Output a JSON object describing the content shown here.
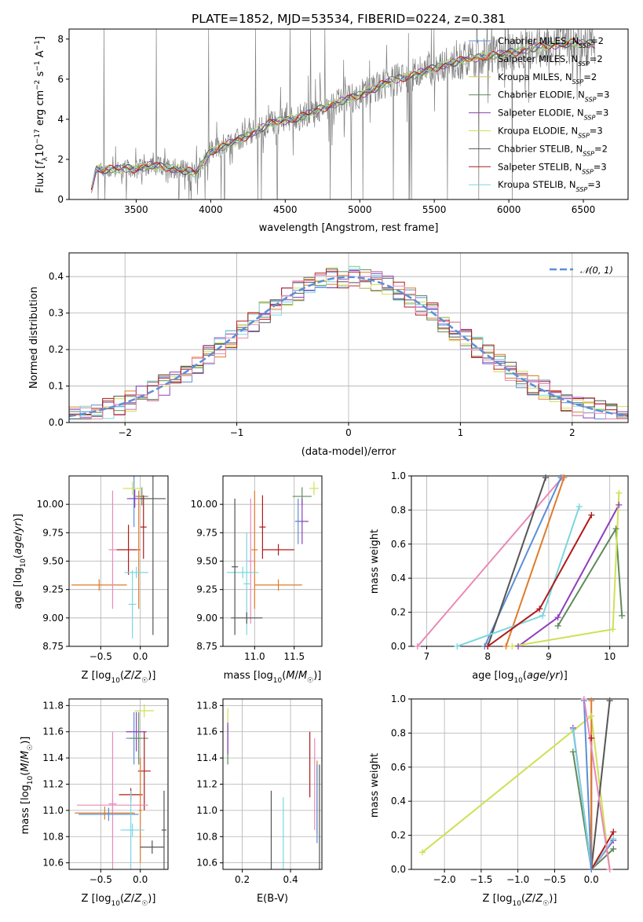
{
  "figure_title": "PLATE=1852, MJD=53534, FIBERID=0224, z=0.381",
  "colors": {
    "c0": "#5a8fd6",
    "c1": "#e07b2a",
    "c2": "#5f8a5b",
    "c3": "#8e3fbd",
    "c4": "#cfe054",
    "c5": "#7ad6e0",
    "c6": "#555555",
    "c7": "#b01a1a",
    "c8": "#e88ab8",
    "c9": "#d4c25a",
    "data": "#7f7f7f"
  },
  "chart_data": [
    {
      "id": "spectrum",
      "type": "line",
      "xlabel": "wavelength [Angstrom, rest frame]",
      "ylabel": "Flux [f_λ10^-17 erg cm^-2 s^-1 A^-1]",
      "xlim": [
        3050,
        6800
      ],
      "ylim": [
        0,
        8.5
      ],
      "xticks": [
        3500,
        4000,
        4500,
        5000,
        5500,
        6000,
        6500
      ],
      "yticks": [
        0,
        2,
        4,
        6,
        8
      ],
      "grid": false,
      "legend_position": "top-right",
      "continuum": [
        [
          3200,
          0.5
        ],
        [
          3230,
          1.5
        ],
        [
          3300,
          1.5
        ],
        [
          3500,
          1.55
        ],
        [
          3600,
          1.7
        ],
        [
          3700,
          1.6
        ],
        [
          3800,
          1.5
        ],
        [
          3900,
          1.3
        ],
        [
          4000,
          2.4
        ],
        [
          4200,
          3.0
        ],
        [
          4400,
          3.8
        ],
        [
          4600,
          4.1
        ],
        [
          4800,
          4.7
        ],
        [
          5000,
          5.2
        ],
        [
          5200,
          5.9
        ],
        [
          5400,
          6.3
        ],
        [
          5600,
          6.8
        ],
        [
          5800,
          7.1
        ],
        [
          6000,
          7.3
        ],
        [
          6200,
          7.6
        ],
        [
          6400,
          7.8
        ],
        [
          6580,
          7.75
        ]
      ],
      "series": [
        {
          "name": "Chabrier MILES, N_SSP=2",
          "color_key": "c0"
        },
        {
          "name": "Salpeter MILES, N_SSP=2",
          "color_key": "c1"
        },
        {
          "name": "Kroupa MILES, N_SSP=2",
          "color_key": "c9"
        },
        {
          "name": "Chabrier ELODIE, N_SSP=3",
          "color_key": "c2"
        },
        {
          "name": "Salpeter ELODIE, N_SSP=3",
          "color_key": "c3"
        },
        {
          "name": "Kroupa ELODIE, N_SSP=3",
          "color_key": "c4"
        },
        {
          "name": "Chabrier STELIB, N_SSP=2",
          "color_key": "c6"
        },
        {
          "name": "Salpeter STELIB, N_SSP=3",
          "color_key": "c7"
        },
        {
          "name": "Kroupa STELIB, N_SSP=3",
          "color_key": "c5"
        }
      ]
    },
    {
      "id": "residuals",
      "type": "histogram",
      "xlabel": "(data-model)/error",
      "ylabel": "Normed distribution",
      "xlim": [
        -2.5,
        2.5
      ],
      "ylim": [
        0,
        0.465
      ],
      "xticks": [
        -2,
        -1,
        0,
        1,
        2
      ],
      "yticks": [
        0.0,
        0.1,
        0.2,
        0.3,
        0.4
      ],
      "grid": true,
      "legend_position": "top-right",
      "legend_label": "N(0,1)",
      "bin_width": 0.1
    },
    {
      "id": "age-vs-Z",
      "type": "errorbar",
      "xlabel": "Z [log10(Z/Z☉)]",
      "ylabel": "age  [log10(age/yr)]",
      "xlim": [
        -0.9,
        0.35
      ],
      "ylim": [
        8.75,
        10.25
      ],
      "xticks": [
        -0.5,
        0.0
      ],
      "yticks": [
        8.75,
        9.0,
        9.25,
        9.5,
        9.75,
        10.0
      ],
      "grid": true,
      "points": [
        {
          "x": -0.08,
          "xerr": 0.06,
          "y": 10.05,
          "yerr": 0.25,
          "color_key": "c0"
        },
        {
          "x": 0.02,
          "xerr": 0.08,
          "y": 10.07,
          "yerr": 0.08,
          "color_key": "c2"
        },
        {
          "x": -0.1,
          "xerr": 0.12,
          "y": 10.14,
          "yerr": 0.06,
          "color_key": "c4"
        },
        {
          "x": -0.07,
          "xerr": 0.1,
          "y": 10.05,
          "yerr": 0.08,
          "color_key": "c3"
        },
        {
          "x": 0.16,
          "xerr": 0.16,
          "y": 10.05,
          "yerr": 1.2,
          "color_key": "c6"
        },
        {
          "x": 0.04,
          "xerr": 0.04,
          "y": 9.8,
          "yerr": 0.28,
          "color_key": "c7"
        },
        {
          "x": -0.15,
          "xerr": 0.15,
          "y": 9.6,
          "yerr": 0.22,
          "color_key": "c7"
        },
        {
          "x": -0.02,
          "xerr": 0.02,
          "y": 9.6,
          "yerr": 0.52,
          "color_key": "c1"
        },
        {
          "x": -0.52,
          "xerr": 0.35,
          "y": 9.29,
          "yerr": 0.05,
          "color_key": "c1"
        },
        {
          "x": -0.35,
          "xerr": 0.05,
          "y": 9.6,
          "yerr": 0.52,
          "color_key": "c8"
        },
        {
          "x": -0.1,
          "xerr": 0.05,
          "y": 9.12,
          "yerr": 0.3,
          "color_key": "c5"
        },
        {
          "x": -0.05,
          "xerr": 0.15,
          "y": 9.4,
          "yerr": 0.05,
          "color_key": "c5"
        }
      ]
    },
    {
      "id": "age-vs-mass",
      "type": "errorbar",
      "xlabel": "mass [log10(M/M☉)]",
      "ylabel": "",
      "xlim": [
        10.6,
        11.85
      ],
      "ylim": [
        8.75,
        10.25
      ],
      "xticks": [
        11.0,
        11.5
      ],
      "yticks": [
        8.75,
        9.0,
        9.25,
        9.5,
        9.75,
        10.0
      ],
      "grid": true,
      "points": [
        {
          "x": 11.75,
          "xerr": 0.06,
          "y": 10.14,
          "yerr": 0.06,
          "color_key": "c4"
        },
        {
          "x": 11.6,
          "xerr": 0.12,
          "y": 10.07,
          "yerr": 0.08,
          "color_key": "c2"
        },
        {
          "x": 11.6,
          "xerr": 0.08,
          "y": 9.85,
          "yerr": 0.2,
          "color_key": "c3"
        },
        {
          "x": 11.55,
          "xerr": 0.04,
          "y": 9.85,
          "yerr": 0.2,
          "color_key": "c0"
        },
        {
          "x": 11.1,
          "xerr": 0.04,
          "y": 9.8,
          "yerr": 0.28,
          "color_key": "c7"
        },
        {
          "x": 11.3,
          "xerr": 0.2,
          "y": 9.6,
          "yerr": 0.05,
          "color_key": "c7"
        },
        {
          "x": 11.3,
          "xerr": 0.3,
          "y": 9.29,
          "yerr": 0.05,
          "color_key": "c1"
        },
        {
          "x": 11.0,
          "xerr": 0.04,
          "y": 9.6,
          "yerr": 0.52,
          "color_key": "c1"
        },
        {
          "x": 10.95,
          "xerr": 0.04,
          "y": 9.5,
          "yerr": 0.55,
          "color_key": "c8"
        },
        {
          "x": 10.9,
          "xerr": 0.04,
          "y": 9.3,
          "yerr": 0.45,
          "color_key": "c5"
        },
        {
          "x": 10.85,
          "xerr": 0.2,
          "y": 9.4,
          "yerr": 0.05,
          "color_key": "c5"
        },
        {
          "x": 10.9,
          "xerr": 0.2,
          "y": 9.0,
          "yerr": 0.05,
          "color_key": "c6"
        },
        {
          "x": 10.75,
          "xerr": 0.04,
          "y": 9.45,
          "yerr": 0.6,
          "color_key": "c6"
        }
      ]
    },
    {
      "id": "massweight-vs-age",
      "type": "line",
      "xlabel": "age  [log10(age/yr)]",
      "ylabel": "mass weight",
      "xlim": [
        6.75,
        10.3
      ],
      "ylim": [
        0,
        1.0
      ],
      "xticks": [
        7,
        8,
        9,
        10
      ],
      "yticks": [
        0.0,
        0.2,
        0.4,
        0.6,
        0.8,
        1.0
      ],
      "grid": true,
      "series": [
        {
          "color_key": "c8",
          "points": [
            [
              6.85,
              0.0
            ],
            [
              9.22,
              0.99
            ]
          ]
        },
        {
          "color_key": "c0",
          "points": [
            [
              7.95,
              0.0
            ],
            [
              9.2,
              0.99
            ]
          ]
        },
        {
          "color_key": "c1",
          "points": [
            [
              8.3,
              0.0
            ],
            [
              9.25,
              0.99
            ]
          ]
        },
        {
          "color_key": "c6",
          "points": [
            [
              8.0,
              0.0
            ],
            [
              8.95,
              0.99
            ]
          ]
        },
        {
          "color_key": "c5",
          "points": [
            [
              7.5,
              0.0
            ],
            [
              8.9,
              0.18
            ],
            [
              9.5,
              0.82
            ]
          ]
        },
        {
          "color_key": "c7",
          "points": [
            [
              8.0,
              0.0
            ],
            [
              8.85,
              0.22
            ],
            [
              9.7,
              0.77
            ]
          ]
        },
        {
          "color_key": "c3",
          "points": [
            [
              8.5,
              0.0
            ],
            [
              9.15,
              0.17
            ],
            [
              10.15,
              0.83
            ]
          ]
        },
        {
          "color_key": "c2",
          "points": [
            [
              9.15,
              0.12
            ],
            [
              10.1,
              0.69
            ],
            [
              10.2,
              0.18
            ]
          ]
        },
        {
          "color_key": "c4",
          "points": [
            [
              8.4,
              0.0
            ],
            [
              10.05,
              0.1
            ],
            [
              10.15,
              0.9
            ]
          ]
        }
      ]
    },
    {
      "id": "mass-vs-Z",
      "type": "errorbar",
      "xlabel": "Z [log10(Z/Z☉)]",
      "ylabel": "mass [log10(M/M☉)]",
      "xlim": [
        -0.9,
        0.35
      ],
      "ylim": [
        10.55,
        11.85
      ],
      "xticks": [
        -0.5,
        0.0
      ],
      "yticks": [
        10.6,
        10.8,
        11.0,
        11.2,
        11.4,
        11.6,
        11.8
      ],
      "grid": true,
      "points": [
        {
          "x": 0.05,
          "xerr": 0.12,
          "y": 11.76,
          "yerr": 0.05,
          "color_key": "c4"
        },
        {
          "x": -0.08,
          "xerr": 0.1,
          "y": 11.55,
          "yerr": 0.2,
          "color_key": "c0"
        },
        {
          "x": -0.05,
          "xerr": 0.13,
          "y": 11.6,
          "yerr": 0.15,
          "color_key": "c3"
        },
        {
          "x": -0.02,
          "xerr": 0.12,
          "y": 11.55,
          "yerr": 0.2,
          "color_key": "c2"
        },
        {
          "x": 0.05,
          "xerr": 0.08,
          "y": 11.3,
          "yerr": 0.3,
          "color_key": "c7"
        },
        {
          "x": -0.12,
          "xerr": 0.15,
          "y": 11.12,
          "yerr": 0.05,
          "color_key": "c7"
        },
        {
          "x": -0.35,
          "xerr": 0.45,
          "y": 11.04,
          "yerr": 0.05,
          "color_key": "c8"
        },
        {
          "x": -0.35,
          "xerr": 0.05,
          "y": 11.05,
          "yerr": 0.55,
          "color_key": "c8"
        },
        {
          "x": -0.45,
          "xerr": 0.38,
          "y": 10.98,
          "yerr": 0.05,
          "color_key": "c1"
        },
        {
          "x": 0.0,
          "xerr": 0.02,
          "y": 11.0,
          "yerr": 0.4,
          "color_key": "c1"
        },
        {
          "x": -0.4,
          "xerr": 0.38,
          "y": 10.97,
          "yerr": 0.05,
          "color_key": "c0"
        },
        {
          "x": -0.1,
          "xerr": 0.15,
          "y": 10.85,
          "yerr": 0.05,
          "color_key": "c5"
        },
        {
          "x": -0.12,
          "xerr": 0.04,
          "y": 10.85,
          "yerr": 0.3,
          "color_key": "c5"
        },
        {
          "x": 0.15,
          "xerr": 0.15,
          "y": 10.72,
          "yerr": 0.05,
          "color_key": "c6"
        },
        {
          "x": 0.3,
          "xerr": 0.03,
          "y": 10.85,
          "yerr": 0.3,
          "color_key": "c6"
        }
      ]
    },
    {
      "id": "mass-vs-EBV",
      "type": "errorbar",
      "xlabel": "E(B-V)",
      "ylabel": "",
      "xlim": [
        0.12,
        0.53
      ],
      "ylim": [
        10.55,
        11.85
      ],
      "xticks": [
        0.2,
        0.4
      ],
      "yticks": [
        10.6,
        10.8,
        11.0,
        11.2,
        11.4,
        11.6,
        11.8
      ],
      "grid": true,
      "points": [
        {
          "x": 0.14,
          "y": 11.6,
          "yerr": 0.18,
          "color_key": "c4"
        },
        {
          "x": 0.14,
          "y": 11.5,
          "yerr": 0.15,
          "color_key": "c2"
        },
        {
          "x": 0.14,
          "y": 11.55,
          "yerr": 0.12,
          "color_key": "c3"
        },
        {
          "x": 0.48,
          "y": 11.35,
          "yerr": 0.25,
          "color_key": "c7"
        },
        {
          "x": 0.5,
          "y": 11.2,
          "yerr": 0.35,
          "color_key": "c8"
        },
        {
          "x": 0.51,
          "y": 11.1,
          "yerr": 0.28,
          "color_key": "c1"
        },
        {
          "x": 0.51,
          "y": 11.05,
          "yerr": 0.3,
          "color_key": "c0"
        },
        {
          "x": 0.52,
          "y": 10.95,
          "yerr": 0.4,
          "color_key": "c6"
        },
        {
          "x": 0.32,
          "y": 10.8,
          "yerr": 0.35,
          "color_key": "c6"
        },
        {
          "x": 0.37,
          "y": 10.75,
          "yerr": 0.35,
          "color_key": "c5"
        }
      ]
    },
    {
      "id": "massweight-vs-Z",
      "type": "line",
      "xlabel": "Z [log10(Z/Z☉)]",
      "ylabel": "mass weight",
      "xlim": [
        -2.45,
        0.5
      ],
      "ylim": [
        0,
        1.0
      ],
      "xticks": [
        -2.0,
        -1.5,
        -1.0,
        -0.5,
        0.0
      ],
      "yticks": [
        0.0,
        0.2,
        0.4,
        0.6,
        0.8,
        1.0
      ],
      "grid": true,
      "series": [
        {
          "color_key": "c4",
          "points": [
            [
              -2.3,
              0.1
            ],
            [
              0.0,
              0.9
            ],
            [
              0.25,
              0.0
            ]
          ]
        },
        {
          "color_key": "c2",
          "points": [
            [
              -0.25,
              0.69
            ],
            [
              0.0,
              0.0
            ],
            [
              0.3,
              0.12
            ]
          ]
        },
        {
          "color_key": "c3",
          "points": [
            [
              -0.25,
              0.83
            ],
            [
              0.0,
              0.0
            ],
            [
              0.3,
              0.17
            ]
          ]
        },
        {
          "color_key": "c5",
          "points": [
            [
              -0.25,
              0.82
            ],
            [
              0.0,
              0.0
            ],
            [
              0.3,
              0.18
            ]
          ]
        },
        {
          "color_key": "c7",
          "points": [
            [
              0.0,
              0.77
            ],
            [
              0.0,
              0.0
            ],
            [
              0.3,
              0.22
            ]
          ]
        },
        {
          "color_key": "c6",
          "points": [
            [
              0.0,
              0.0
            ],
            [
              0.25,
              0.99
            ]
          ]
        },
        {
          "color_key": "c1",
          "points": [
            [
              0.0,
              0.0
            ],
            [
              0.0,
              0.99
            ]
          ]
        },
        {
          "color_key": "c0",
          "points": [
            [
              0.0,
              0.0
            ],
            [
              -0.1,
              0.99
            ]
          ]
        },
        {
          "color_key": "c8",
          "points": [
            [
              -0.1,
              1.0
            ],
            [
              0.25,
              0.0
            ]
          ]
        }
      ]
    }
  ]
}
